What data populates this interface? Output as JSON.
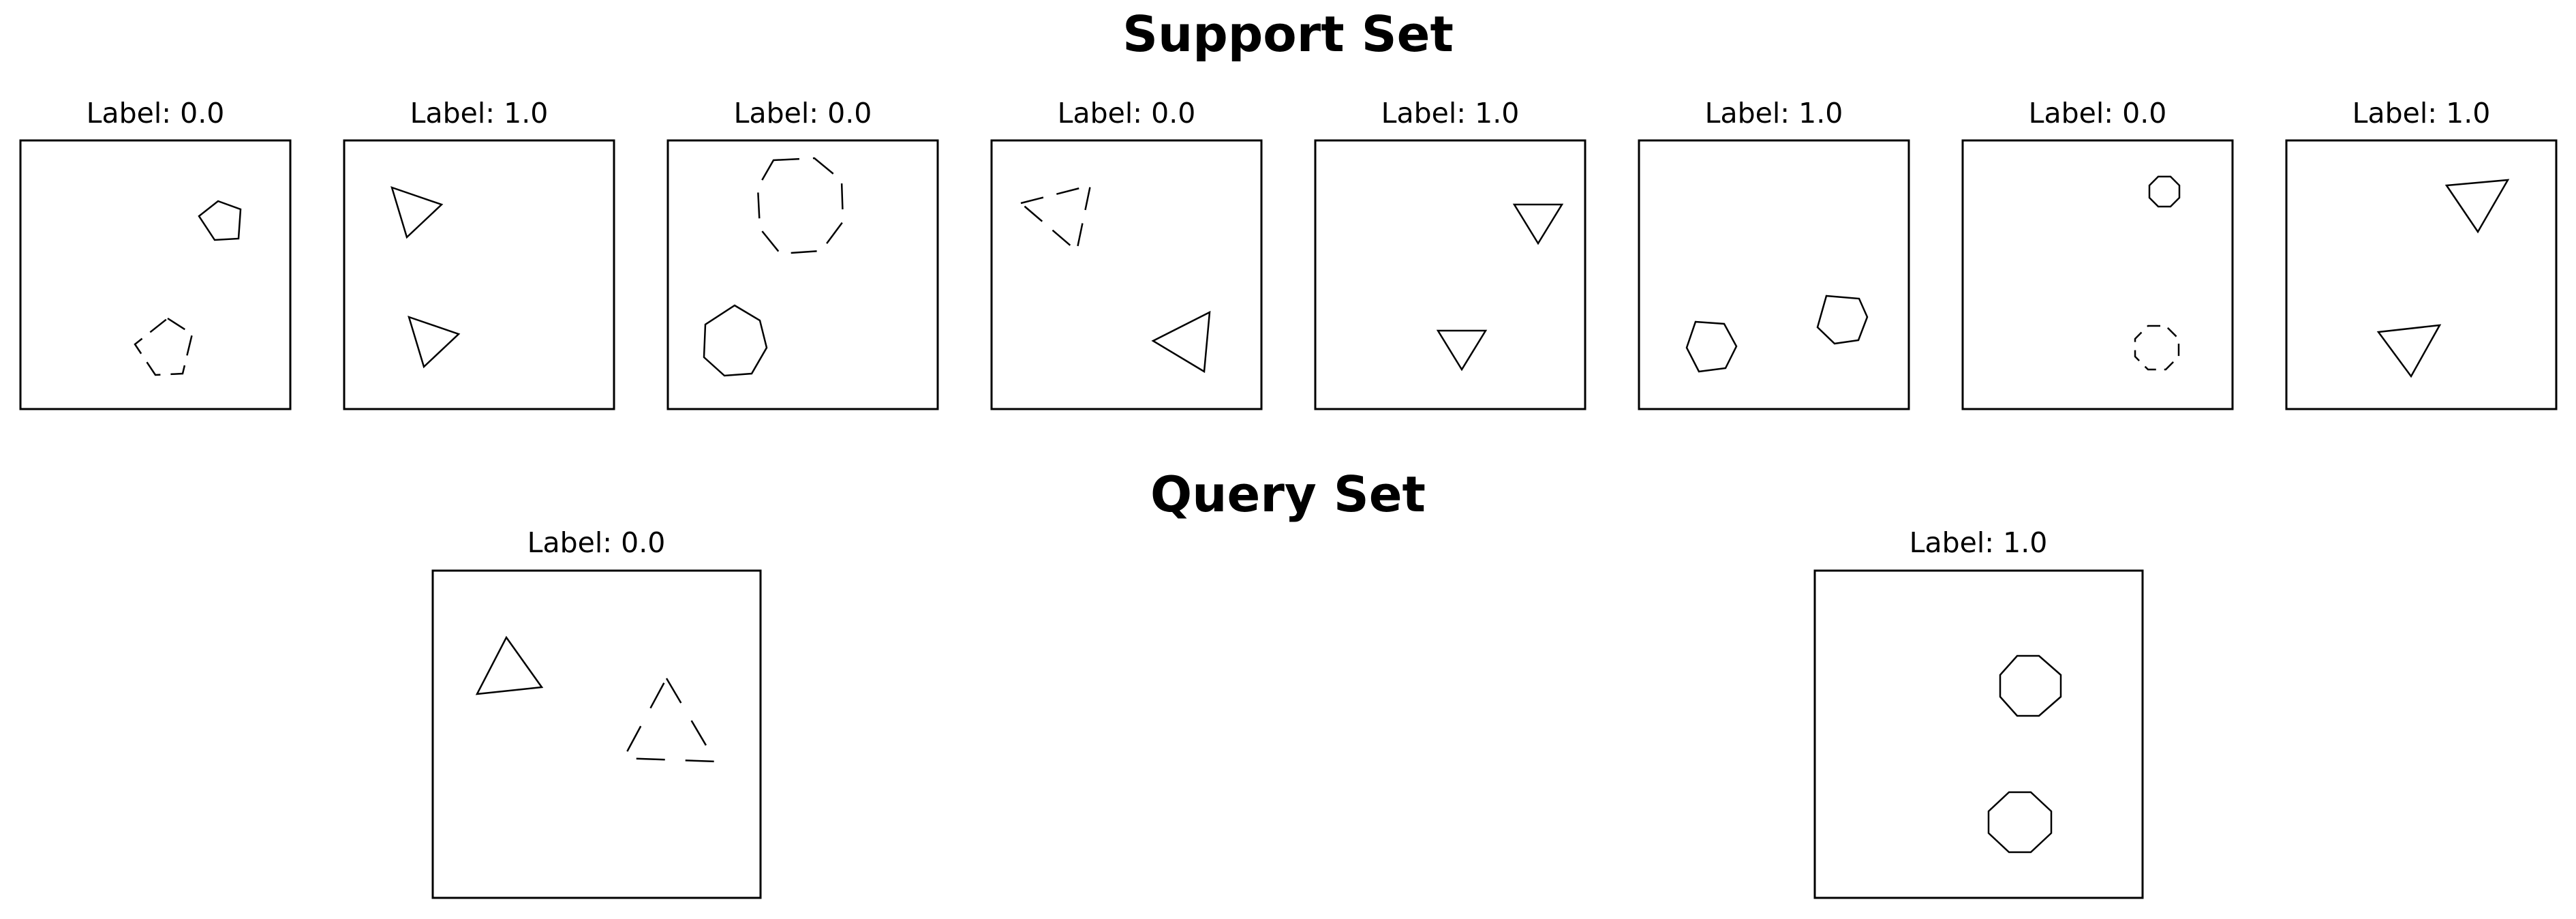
{
  "support_set": {
    "title": "Support Set",
    "panels": [
      {
        "label": "Label: 0.0",
        "shapes": [
          "pentagon-solid",
          "pentagon-dashed"
        ]
      },
      {
        "label": "Label: 1.0",
        "shapes": [
          "triangle-solid",
          "triangle-solid"
        ]
      },
      {
        "label": "Label: 0.0",
        "shapes": [
          "octagon-dashed",
          "heptagon-solid"
        ]
      },
      {
        "label": "Label: 0.0",
        "shapes": [
          "triangle-dashed",
          "triangle-solid"
        ]
      },
      {
        "label": "Label: 1.0",
        "shapes": [
          "triangle-solid",
          "triangle-solid"
        ]
      },
      {
        "label": "Label: 1.0",
        "shapes": [
          "hexagon-solid",
          "hexagon-solid"
        ]
      },
      {
        "label": "Label: 0.0",
        "shapes": [
          "octagon-solid",
          "octagon-dashed"
        ]
      },
      {
        "label": "Label: 1.0",
        "shapes": [
          "triangle-solid",
          "triangle-solid"
        ]
      }
    ]
  },
  "query_set": {
    "title": "Query Set",
    "panels": [
      {
        "label": "Label: 0.0",
        "shapes": [
          "triangle-solid",
          "triangle-dashed"
        ]
      },
      {
        "label": "Label: 1.0",
        "shapes": [
          "octagon-solid",
          "octagon-solid"
        ]
      }
    ]
  },
  "colors": {
    "stroke": "#000000",
    "background": "#ffffff"
  }
}
